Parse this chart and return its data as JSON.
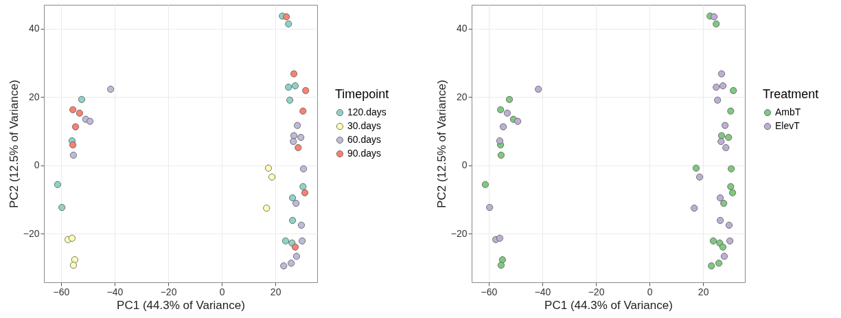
{
  "chart_data": [
    {
      "type": "scatter",
      "xlabel": "PC1 (44.3% of Variance)",
      "ylabel": "PC2 (12.5% of Variance)",
      "legend_title": "Timepoint",
      "legend": "right",
      "grid": true,
      "marker": "circle",
      "xlim": [
        -66.4,
        35.6
      ],
      "ylim": [
        -34.2,
        47
      ],
      "xticks": [
        -60,
        -40,
        -20,
        0,
        20
      ],
      "yticks": [
        -20,
        0,
        20,
        40
      ],
      "series": [
        {
          "name": "120.days",
          "color": "#8dd3c7",
          "x": [
            22.6,
            24.9,
            -52.3,
            -55.9,
            -61.3,
            -59.7,
            24.9,
            27.4,
            25.4,
            30.3,
            26.4,
            26.4,
            23.8,
            26.2
          ],
          "values": [
            43.7,
            41.4,
            19.3,
            7.2,
            -5.6,
            -12.3,
            22.9,
            23.3,
            19.1,
            -6.2,
            -9.5,
            -16.1,
            -22.1,
            -22.7
          ]
        },
        {
          "name": "30.days",
          "color": "#ffffb3",
          "x": [
            -57.4,
            -55.9,
            -54.9,
            -55.4,
            17.4,
            18.7,
            16.7
          ],
          "values": [
            -21.7,
            -21.3,
            -27.6,
            -29.2,
            -0.8,
            -3.4,
            -12.5
          ]
        },
        {
          "name": "60.days",
          "color": "#bebada",
          "x": [
            -41.5,
            -50.8,
            -49.2,
            -55.4,
            28.2,
            26.9,
            29.5,
            26.7,
            30.5,
            27.7,
            29.7,
            30.0,
            27.9,
            23.1,
            25.9
          ],
          "values": [
            22.3,
            13.5,
            12.9,
            3.0,
            11.7,
            8.7,
            8.2,
            7.0,
            -1.0,
            -11.1,
            -17.5,
            -22.1,
            -26.6,
            -29.4,
            -28.6
          ]
        },
        {
          "name": "90.days",
          "color": "#fb8072",
          "x": [
            24.1,
            -55.6,
            -53.1,
            -54.6,
            -55.6,
            26.9,
            31.3,
            30.3,
            28.5,
            31.0,
            27.4
          ],
          "values": [
            43.5,
            16.3,
            15.3,
            11.3,
            6.0,
            26.8,
            21.9,
            15.9,
            5.2,
            -8.0,
            -23.9
          ]
        }
      ]
    },
    {
      "type": "scatter",
      "xlabel": "PC1 (44.3% of Variance)",
      "ylabel": "PC2 (12.5% of Variance)",
      "legend_title": "Treatment",
      "legend": "right",
      "grid": true,
      "marker": "circle",
      "xlim": [
        -66.4,
        35.6
      ],
      "ylim": [
        -34.2,
        47
      ],
      "xticks": [
        -60,
        -40,
        -20,
        0,
        20
      ],
      "yticks": [
        -20,
        0,
        20,
        40
      ],
      "series": [
        {
          "name": "AmbT",
          "color": "#7fc97f",
          "x": [
            22.6,
            24.9,
            -52.3,
            -55.6,
            -50.8,
            -55.6,
            -55.4,
            -61.3,
            -54.9,
            -55.4,
            31.3,
            30.3,
            26.9,
            29.5,
            30.5,
            17.4,
            30.3,
            31.0,
            27.7,
            23.8,
            26.2,
            27.4,
            23.1,
            25.9
          ],
          "values": [
            43.7,
            41.4,
            19.3,
            16.3,
            13.5,
            6.0,
            3.0,
            -5.6,
            -27.6,
            -29.2,
            21.9,
            15.9,
            8.7,
            8.2,
            -1.0,
            -0.8,
            -6.2,
            -8.0,
            -11.1,
            -22.1,
            -22.7,
            -23.9,
            -29.4,
            -28.6
          ]
        },
        {
          "name": "ElevT",
          "color": "#beaed4",
          "x": [
            -41.5,
            -53.1,
            -49.2,
            -54.6,
            -55.9,
            -59.7,
            -57.4,
            -55.9,
            24.1,
            26.9,
            24.9,
            27.4,
            25.4,
            28.2,
            26.7,
            28.5,
            18.7,
            26.4,
            16.7,
            26.4,
            29.7,
            30.0,
            27.9
          ],
          "values": [
            22.3,
            15.3,
            12.9,
            11.3,
            7.2,
            -12.3,
            -21.7,
            -21.3,
            43.5,
            26.8,
            22.9,
            23.3,
            19.1,
            11.7,
            7.0,
            5.2,
            -3.4,
            -9.5,
            -12.5,
            -16.1,
            -17.5,
            -22.1,
            -26.6
          ]
        }
      ]
    }
  ]
}
